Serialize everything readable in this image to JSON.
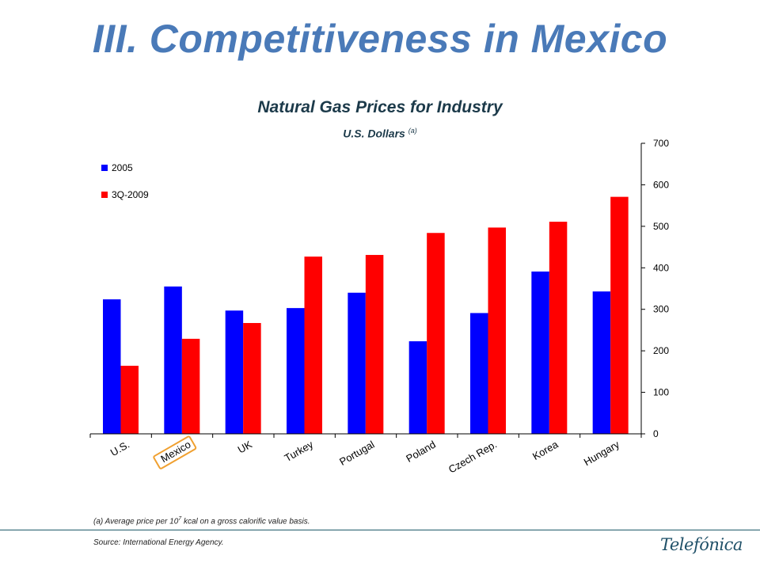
{
  "slide": {
    "title": "III. Competitiveness in Mexico"
  },
  "chart_data": {
    "type": "bar",
    "title": "Natural Gas Prices for Industry",
    "subtitle": "U.S. Dollars",
    "subtitle_note": "(a)",
    "categories": [
      "U.S.",
      "Mexico",
      "UK",
      "Turkey",
      "Portugal",
      "Poland",
      "Czech Rep.",
      "Korea",
      "Hungary"
    ],
    "series": [
      {
        "name": "2005",
        "color": "#0000ff",
        "values": [
          324,
          355,
          297,
          303,
          340,
          223,
          291,
          391,
          343
        ]
      },
      {
        "name": "3Q-2009",
        "color": "#ff0000",
        "values": [
          164,
          229,
          267,
          427,
          431,
          484,
          497,
          511,
          571
        ]
      }
    ],
    "ylim": [
      0,
      700
    ],
    "yticks": [
      0,
      100,
      200,
      300,
      400,
      500,
      600,
      700
    ],
    "y_axis_side": "right",
    "legend_position": "top-left",
    "grid": false,
    "highlighted_category": "Mexico",
    "highlight_color": "#f0a030"
  },
  "footnote": {
    "prefix": "(a) Average price per 10",
    "exponent": "7",
    "suffix": " kcal on a gross calorific value basis."
  },
  "source": "Source: International Energy Agency.",
  "logo": {
    "text": "Telefónica",
    "color": "#1f5068"
  }
}
